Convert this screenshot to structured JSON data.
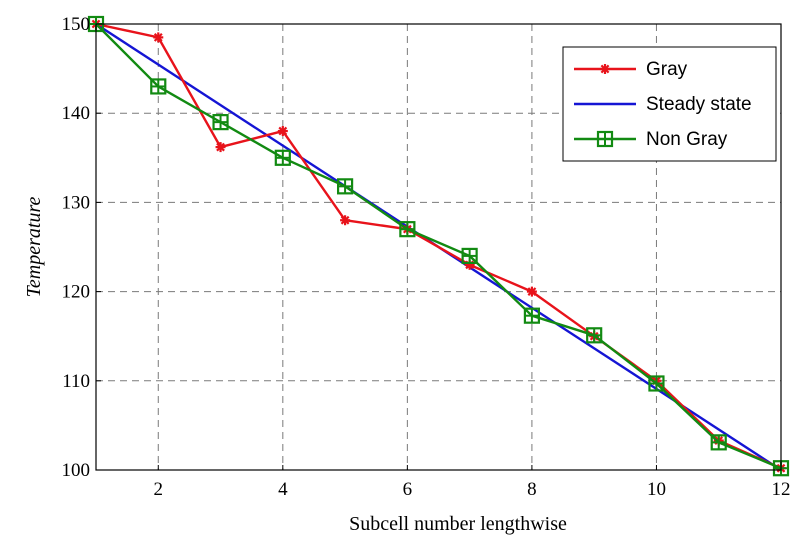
{
  "chart_data": {
    "type": "line",
    "title": "",
    "xlabel": "Subcell number lengthwise",
    "ylabel": "Temperature",
    "xlim": [
      1,
      12
    ],
    "ylim": [
      100,
      150
    ],
    "x_ticks": [
      2,
      4,
      6,
      8,
      10,
      12
    ],
    "y_ticks": [
      100,
      110,
      120,
      130,
      140,
      150
    ],
    "grid": true,
    "legend_position": "top-right",
    "series": [
      {
        "name": "Gray",
        "color": "#e8131b",
        "marker": "star",
        "x": [
          1,
          2,
          3,
          4,
          5,
          6,
          7,
          8,
          9,
          10,
          11,
          12
        ],
        "y": [
          150,
          148.5,
          136.2,
          138,
          128,
          127,
          123,
          120,
          115,
          110,
          103.3,
          100.2
        ]
      },
      {
        "name": "Steady state",
        "color": "#1515d4",
        "marker": "none",
        "x": [
          1,
          12
        ],
        "y": [
          150,
          100
        ]
      },
      {
        "name": "Non Gray",
        "color": "#128a12",
        "marker": "square-cross",
        "x": [
          1,
          2,
          3,
          4,
          5,
          6,
          7,
          8,
          9,
          10,
          11,
          12
        ],
        "y": [
          150,
          143,
          139,
          135,
          131.8,
          127,
          124,
          117.3,
          115.1,
          109.7,
          103.1,
          100.2
        ]
      }
    ]
  }
}
